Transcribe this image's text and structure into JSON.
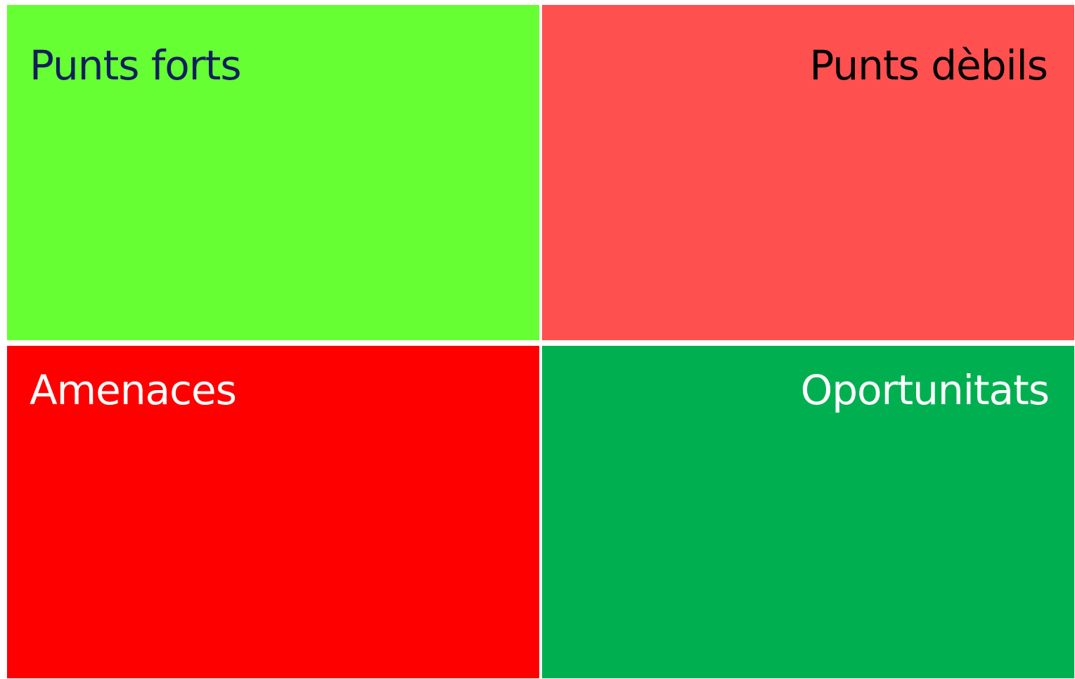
{
  "quadrants": [
    {
      "label": "Punts forts"
    },
    {
      "label": "Punts dèbils"
    },
    {
      "label": "Amenaces"
    },
    {
      "label": "Oportunitats"
    }
  ]
}
